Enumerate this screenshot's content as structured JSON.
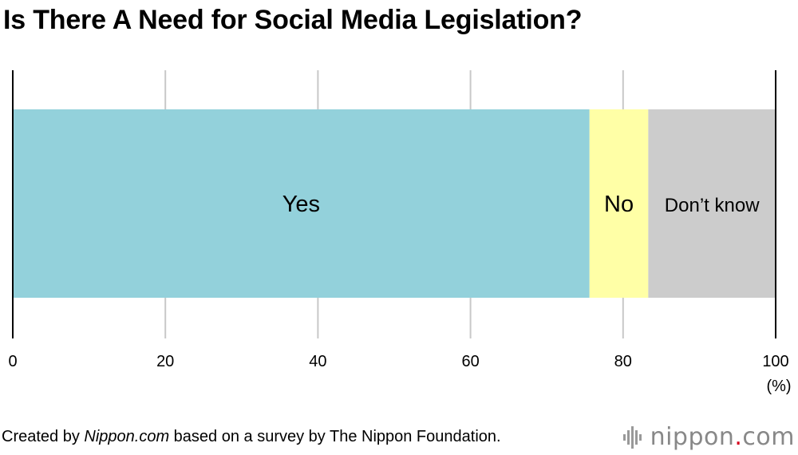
{
  "footer": {
    "prefix": "Created by ",
    "source_name": "Nippon.com",
    "suffix": " based on a survey by The Nippon Foundation."
  },
  "brand": {
    "name_part1": "nippon",
    "dot": ".",
    "name_part2": "com",
    "icon": "sound-bars-logo-icon"
  },
  "colors": {
    "yes": "#93d1db",
    "no": "#ffffa6",
    "dont_know": "#cccccc",
    "grid": "#c8c8c8",
    "axis": "#000000"
  },
  "chart_data": {
    "type": "bar",
    "orientation": "horizontal-stacked",
    "title": "Is There A Need for Social Media Legislation?",
    "unit_label": "(%)",
    "xlim": [
      0,
      100
    ],
    "xticks": [
      0,
      20,
      40,
      60,
      80,
      100
    ],
    "grid": true,
    "series": [
      {
        "name": "Yes",
        "value": 75.6
      },
      {
        "name": "No",
        "value": 7.7
      },
      {
        "name": "Don’t know",
        "value": 16.7
      }
    ]
  }
}
